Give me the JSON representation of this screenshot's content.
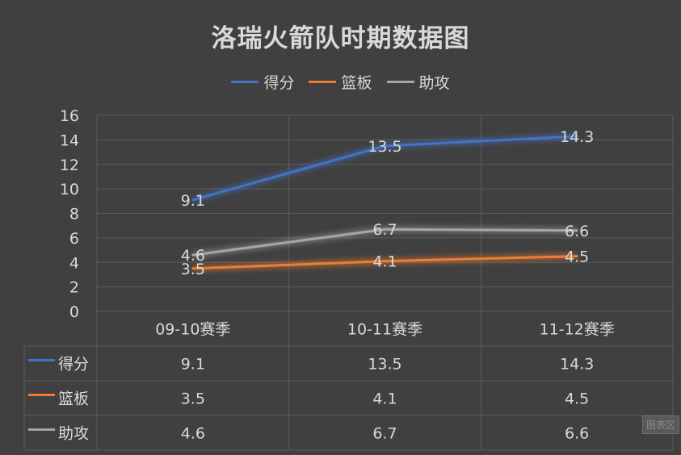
{
  "colors": {
    "background": "#404040",
    "text": "#d9d9d9",
    "grid": "#5c5c5c"
  },
  "chart_data": {
    "type": "line",
    "title": "洛瑞火箭队时期数据图",
    "categories": [
      "09-10赛季",
      "10-11赛季",
      "11-12赛季"
    ],
    "ylim": [
      0,
      16
    ],
    "yticks": [
      0,
      2,
      4,
      6,
      8,
      10,
      12,
      14,
      16
    ],
    "grid": true,
    "legend_position": "top",
    "data_table": true,
    "series": [
      {
        "name": "得分",
        "color": "#4472c4",
        "values": [
          9.1,
          13.5,
          14.3
        ]
      },
      {
        "name": "篮板",
        "color": "#ed7d31",
        "values": [
          3.5,
          4.1,
          4.5
        ]
      },
      {
        "name": "助攻",
        "color": "#a5a5a5",
        "values": [
          4.6,
          6.7,
          6.6
        ]
      }
    ]
  },
  "watermark": "图表区"
}
